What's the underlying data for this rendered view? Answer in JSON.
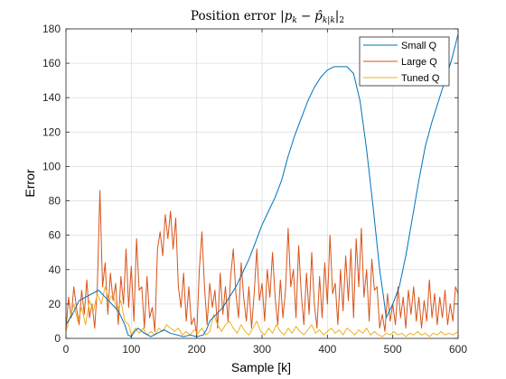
{
  "chart_data": {
    "type": "line",
    "title": "Position error |p_k − p̂_{k|k}|_2",
    "title_parts": {
      "p": "p",
      "sub_k": "k",
      "minus": "−",
      "phat": "p̂",
      "sub_kk": "k|k",
      "norm_sub": "2",
      "bar": "|",
      "prefix": "Position error"
    },
    "xlabel": "Sample [k]",
    "ylabel": "Error",
    "xlim": [
      0,
      600
    ],
    "ylim": [
      0,
      180
    ],
    "xticks": [
      0,
      100,
      200,
      300,
      400,
      500,
      600
    ],
    "yticks": [
      0,
      20,
      40,
      60,
      80,
      100,
      120,
      140,
      160,
      180
    ],
    "grid": true,
    "legend_position": "top-right",
    "series": [
      {
        "name": "Small Q",
        "color": "#0072BD",
        "points": [
          [
            0,
            8
          ],
          [
            10,
            14
          ],
          [
            20,
            22
          ],
          [
            30,
            24
          ],
          [
            40,
            26
          ],
          [
            50,
            28
          ],
          [
            60,
            24
          ],
          [
            70,
            20
          ],
          [
            80,
            16
          ],
          [
            90,
            8
          ],
          [
            95,
            2
          ],
          [
            100,
            1
          ],
          [
            105,
            4
          ],
          [
            110,
            6
          ],
          [
            120,
            3
          ],
          [
            130,
            1
          ],
          [
            140,
            3
          ],
          [
            150,
            5
          ],
          [
            160,
            3
          ],
          [
            170,
            2
          ],
          [
            180,
            1
          ],
          [
            190,
            2
          ],
          [
            200,
            1
          ],
          [
            210,
            2
          ],
          [
            215,
            5
          ],
          [
            220,
            10
          ],
          [
            230,
            14
          ],
          [
            240,
            18
          ],
          [
            250,
            24
          ],
          [
            260,
            30
          ],
          [
            270,
            38
          ],
          [
            280,
            46
          ],
          [
            290,
            56
          ],
          [
            300,
            66
          ],
          [
            310,
            74
          ],
          [
            320,
            82
          ],
          [
            330,
            92
          ],
          [
            340,
            106
          ],
          [
            350,
            118
          ],
          [
            360,
            128
          ],
          [
            370,
            138
          ],
          [
            380,
            146
          ],
          [
            390,
            152
          ],
          [
            400,
            156
          ],
          [
            410,
            158
          ],
          [
            420,
            158
          ],
          [
            430,
            158
          ],
          [
            440,
            154
          ],
          [
            450,
            138
          ],
          [
            460,
            110
          ],
          [
            470,
            76
          ],
          [
            480,
            40
          ],
          [
            486,
            24
          ],
          [
            490,
            12
          ],
          [
            495,
            16
          ],
          [
            500,
            20
          ],
          [
            510,
            30
          ],
          [
            520,
            48
          ],
          [
            530,
            70
          ],
          [
            540,
            92
          ],
          [
            550,
            112
          ],
          [
            560,
            126
          ],
          [
            570,
            138
          ],
          [
            580,
            150
          ],
          [
            590,
            162
          ],
          [
            600,
            177
          ]
        ]
      },
      {
        "name": "Large Q",
        "color": "#D95319",
        "points": [
          [
            0,
            5
          ],
          [
            4,
            24
          ],
          [
            8,
            12
          ],
          [
            12,
            30
          ],
          [
            16,
            18
          ],
          [
            20,
            8
          ],
          [
            24,
            28
          ],
          [
            28,
            14
          ],
          [
            32,
            34
          ],
          [
            36,
            12
          ],
          [
            40,
            20
          ],
          [
            44,
            6
          ],
          [
            48,
            30
          ],
          [
            52,
            86
          ],
          [
            56,
            30
          ],
          [
            60,
            44
          ],
          [
            64,
            14
          ],
          [
            68,
            38
          ],
          [
            72,
            22
          ],
          [
            76,
            32
          ],
          [
            80,
            8
          ],
          [
            84,
            36
          ],
          [
            88,
            20
          ],
          [
            92,
            52
          ],
          [
            96,
            18
          ],
          [
            100,
            42
          ],
          [
            104,
            10
          ],
          [
            108,
            58
          ],
          [
            112,
            28
          ],
          [
            116,
            30
          ],
          [
            120,
            6
          ],
          [
            124,
            36
          ],
          [
            128,
            12
          ],
          [
            132,
            18
          ],
          [
            136,
            4
          ],
          [
            140,
            52
          ],
          [
            144,
            62
          ],
          [
            148,
            48
          ],
          [
            152,
            72
          ],
          [
            156,
            58
          ],
          [
            160,
            74
          ],
          [
            164,
            52
          ],
          [
            168,
            70
          ],
          [
            172,
            30
          ],
          [
            176,
            18
          ],
          [
            180,
            38
          ],
          [
            184,
            10
          ],
          [
            188,
            30
          ],
          [
            192,
            8
          ],
          [
            196,
            12
          ],
          [
            200,
            2
          ],
          [
            204,
            40
          ],
          [
            208,
            62
          ],
          [
            212,
            30
          ],
          [
            216,
            8
          ],
          [
            220,
            32
          ],
          [
            224,
            18
          ],
          [
            228,
            28
          ],
          [
            232,
            6
          ],
          [
            236,
            38
          ],
          [
            240,
            14
          ],
          [
            244,
            30
          ],
          [
            248,
            10
          ],
          [
            252,
            36
          ],
          [
            256,
            52
          ],
          [
            260,
            26
          ],
          [
            264,
            12
          ],
          [
            268,
            44
          ],
          [
            272,
            24
          ],
          [
            276,
            10
          ],
          [
            280,
            30
          ],
          [
            284,
            6
          ],
          [
            288,
            26
          ],
          [
            292,
            52
          ],
          [
            296,
            22
          ],
          [
            300,
            32
          ],
          [
            304,
            10
          ],
          [
            308,
            40
          ],
          [
            312,
            24
          ],
          [
            316,
            50
          ],
          [
            320,
            24
          ],
          [
            324,
            8
          ],
          [
            328,
            34
          ],
          [
            332,
            12
          ],
          [
            336,
            28
          ],
          [
            340,
            64
          ],
          [
            344,
            30
          ],
          [
            348,
            40
          ],
          [
            352,
            12
          ],
          [
            356,
            54
          ],
          [
            360,
            26
          ],
          [
            364,
            8
          ],
          [
            368,
            38
          ],
          [
            372,
            14
          ],
          [
            376,
            50
          ],
          [
            380,
            20
          ],
          [
            384,
            6
          ],
          [
            388,
            36
          ],
          [
            392,
            12
          ],
          [
            396,
            44
          ],
          [
            400,
            20
          ],
          [
            404,
            60
          ],
          [
            408,
            26
          ],
          [
            412,
            32
          ],
          [
            416,
            8
          ],
          [
            420,
            40
          ],
          [
            424,
            16
          ],
          [
            428,
            48
          ],
          [
            432,
            22
          ],
          [
            436,
            52
          ],
          [
            440,
            12
          ],
          [
            444,
            58
          ],
          [
            448,
            30
          ],
          [
            452,
            64
          ],
          [
            456,
            24
          ],
          [
            460,
            40
          ],
          [
            464,
            10
          ],
          [
            468,
            46
          ],
          [
            472,
            28
          ],
          [
            476,
            30
          ],
          [
            480,
            6
          ],
          [
            484,
            14
          ],
          [
            488,
            4
          ],
          [
            492,
            26
          ],
          [
            496,
            10
          ],
          [
            500,
            20
          ],
          [
            504,
            8
          ],
          [
            508,
            30
          ],
          [
            512,
            12
          ],
          [
            516,
            24
          ],
          [
            520,
            6
          ],
          [
            524,
            28
          ],
          [
            528,
            14
          ],
          [
            532,
            30
          ],
          [
            536,
            10
          ],
          [
            540,
            24
          ],
          [
            544,
            6
          ],
          [
            548,
            22
          ],
          [
            552,
            10
          ],
          [
            556,
            34
          ],
          [
            560,
            12
          ],
          [
            564,
            26
          ],
          [
            568,
            8
          ],
          [
            572,
            24
          ],
          [
            576,
            12
          ],
          [
            580,
            28
          ],
          [
            584,
            8
          ],
          [
            588,
            20
          ],
          [
            592,
            10
          ],
          [
            596,
            30
          ],
          [
            600,
            26
          ]
        ]
      },
      {
        "name": "Tuned Q",
        "color": "#EDB120",
        "points": [
          [
            0,
            4
          ],
          [
            6,
            12
          ],
          [
            12,
            20
          ],
          [
            18,
            10
          ],
          [
            24,
            18
          ],
          [
            30,
            8
          ],
          [
            36,
            22
          ],
          [
            42,
            16
          ],
          [
            48,
            26
          ],
          [
            54,
            20
          ],
          [
            60,
            30
          ],
          [
            66,
            22
          ],
          [
            72,
            26
          ],
          [
            78,
            16
          ],
          [
            84,
            22
          ],
          [
            90,
            10
          ],
          [
            96,
            8
          ],
          [
            100,
            2
          ],
          [
            106,
            6
          ],
          [
            112,
            3
          ],
          [
            118,
            6
          ],
          [
            124,
            2
          ],
          [
            130,
            4
          ],
          [
            136,
            2
          ],
          [
            142,
            6
          ],
          [
            148,
            4
          ],
          [
            154,
            8
          ],
          [
            160,
            6
          ],
          [
            166,
            4
          ],
          [
            172,
            6
          ],
          [
            178,
            2
          ],
          [
            184,
            4
          ],
          [
            190,
            2
          ],
          [
            196,
            5
          ],
          [
            202,
            3
          ],
          [
            208,
            6
          ],
          [
            214,
            2
          ],
          [
            220,
            4
          ],
          [
            226,
            14
          ],
          [
            232,
            8
          ],
          [
            238,
            4
          ],
          [
            244,
            8
          ],
          [
            250,
            10
          ],
          [
            256,
            6
          ],
          [
            262,
            3
          ],
          [
            268,
            8
          ],
          [
            274,
            4
          ],
          [
            280,
            2
          ],
          [
            286,
            6
          ],
          [
            292,
            10
          ],
          [
            298,
            4
          ],
          [
            304,
            2
          ],
          [
            310,
            6
          ],
          [
            316,
            3
          ],
          [
            322,
            8
          ],
          [
            328,
            4
          ],
          [
            334,
            2
          ],
          [
            340,
            6
          ],
          [
            346,
            3
          ],
          [
            352,
            7
          ],
          [
            358,
            4
          ],
          [
            364,
            2
          ],
          [
            370,
            5
          ],
          [
            376,
            8
          ],
          [
            382,
            3
          ],
          [
            388,
            5
          ],
          [
            394,
            2
          ],
          [
            400,
            4
          ],
          [
            406,
            6
          ],
          [
            412,
            3
          ],
          [
            418,
            5
          ],
          [
            424,
            2
          ],
          [
            430,
            6
          ],
          [
            436,
            4
          ],
          [
            442,
            2
          ],
          [
            448,
            5
          ],
          [
            454,
            3
          ],
          [
            460,
            6
          ],
          [
            466,
            2
          ],
          [
            472,
            4
          ],
          [
            478,
            2
          ],
          [
            484,
            1
          ],
          [
            490,
            3
          ],
          [
            496,
            2
          ],
          [
            502,
            4
          ],
          [
            508,
            2
          ],
          [
            514,
            3
          ],
          [
            520,
            1
          ],
          [
            526,
            3
          ],
          [
            532,
            2
          ],
          [
            538,
            4
          ],
          [
            544,
            2
          ],
          [
            550,
            3
          ],
          [
            556,
            1
          ],
          [
            562,
            3
          ],
          [
            568,
            2
          ],
          [
            574,
            4
          ],
          [
            580,
            2
          ],
          [
            586,
            3
          ],
          [
            592,
            2
          ],
          [
            600,
            4
          ]
        ]
      }
    ]
  }
}
